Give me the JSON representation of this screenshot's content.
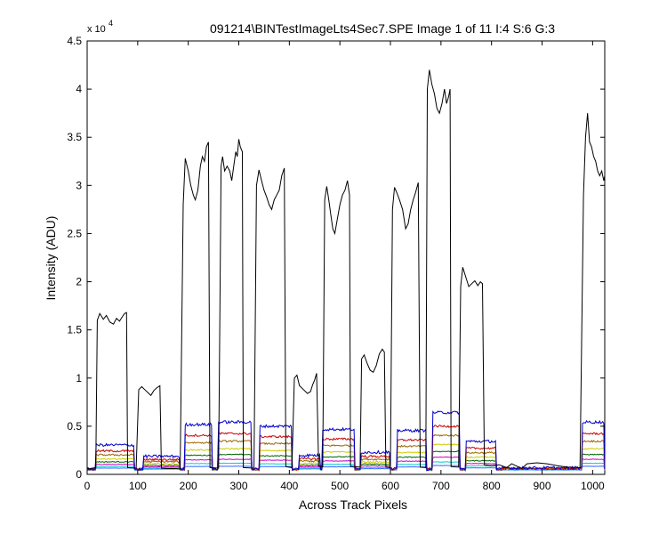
{
  "figure": {
    "title": "091214\\BINTestImageLts4Sec7.SPE  Image 1 of 11  I:4  S:6  G:3",
    "background": "#ffffff"
  },
  "chart_data": {
    "type": "line",
    "title": "091214\\BINTestImageLts4Sec7.SPE  Image 1 of 11  I:4  S:6  G:3",
    "xlabel": "Across Track Pixels",
    "ylabel": "Intensity (ADU)",
    "y_exponent_label": "x 10",
    "y_exponent_power": "4",
    "xlim": [
      0,
      1024
    ],
    "ylim": [
      0,
      45000
    ],
    "xticks": [
      0,
      100,
      200,
      300,
      400,
      500,
      600,
      700,
      800,
      900,
      1000
    ],
    "yticks": [
      0,
      5000,
      10000,
      15000,
      20000,
      25000,
      30000,
      35000,
      40000,
      45000
    ],
    "xtick_labels": [
      "0",
      "100",
      "200",
      "300",
      "400",
      "500",
      "600",
      "700",
      "800",
      "900",
      "1000"
    ],
    "ytick_labels": [
      "0",
      "0.5",
      "1",
      "1.5",
      "2",
      "2.5",
      "3",
      "3.5",
      "4",
      "4.5"
    ],
    "grid": false,
    "segments": [
      {
        "start": 0,
        "end": 18,
        "level": 0
      },
      {
        "start": 18,
        "end": 94,
        "level": 1.0
      },
      {
        "start": 94,
        "end": 111,
        "level": 0
      },
      {
        "start": 111,
        "end": 183,
        "level": 0.53
      },
      {
        "start": 183,
        "end": 193,
        "level": 0
      },
      {
        "start": 193,
        "end": 248,
        "level": 1.85
      },
      {
        "start": 248,
        "end": 260,
        "level": 0
      },
      {
        "start": 260,
        "end": 326,
        "level": 1.95
      },
      {
        "start": 326,
        "end": 341,
        "level": 0
      },
      {
        "start": 341,
        "end": 406,
        "level": 1.78
      },
      {
        "start": 406,
        "end": 420,
        "level": 0
      },
      {
        "start": 420,
        "end": 462,
        "level": 0.57
      },
      {
        "start": 462,
        "end": 466,
        "level": 0
      },
      {
        "start": 466,
        "end": 530,
        "level": 1.65
      },
      {
        "start": 530,
        "end": 542,
        "level": 0
      },
      {
        "start": 542,
        "end": 600,
        "level": 0.7
      },
      {
        "start": 600,
        "end": 613,
        "level": 0
      },
      {
        "start": 613,
        "end": 672,
        "level": 1.6
      },
      {
        "start": 672,
        "end": 684,
        "level": 0
      },
      {
        "start": 684,
        "end": 738,
        "level": 2.35
      },
      {
        "start": 738,
        "end": 750,
        "level": 0
      },
      {
        "start": 750,
        "end": 810,
        "level": 1.15
      },
      {
        "start": 810,
        "end": 822,
        "level": 0
      },
      {
        "start": 822,
        "end": 980,
        "level": 0.05
      },
      {
        "start": 980,
        "end": 1024,
        "level": 1.95
      }
    ],
    "series": [
      {
        "color": "#000000",
        "baseline": 600,
        "points": [
          [
            0,
            550
          ],
          [
            17,
            700
          ],
          [
            20,
            16000
          ],
          [
            25,
            16700
          ],
          [
            32,
            16100
          ],
          [
            38,
            16500
          ],
          [
            45,
            15800
          ],
          [
            52,
            15600
          ],
          [
            58,
            16200
          ],
          [
            64,
            15900
          ],
          [
            70,
            16400
          ],
          [
            74,
            16700
          ],
          [
            78,
            16800
          ],
          [
            80,
            700
          ],
          [
            97,
            650
          ],
          [
            102,
            8800
          ],
          [
            108,
            9100
          ],
          [
            114,
            8800
          ],
          [
            120,
            8500
          ],
          [
            126,
            8200
          ],
          [
            132,
            8700
          ],
          [
            138,
            9000
          ],
          [
            144,
            9200
          ],
          [
            147,
            650
          ],
          [
            160,
            600
          ],
          [
            175,
            600
          ],
          [
            184,
            550
          ],
          [
            190,
            28000
          ],
          [
            194,
            32800
          ],
          [
            200,
            31500
          ],
          [
            205,
            30000
          ],
          [
            210,
            29000
          ],
          [
            214,
            28500
          ],
          [
            219,
            29500
          ],
          [
            224,
            32000
          ],
          [
            228,
            33000
          ],
          [
            232,
            32500
          ],
          [
            236,
            34000
          ],
          [
            240,
            34500
          ],
          [
            243,
            700
          ],
          [
            260,
            650
          ],
          [
            265,
            32000
          ],
          [
            268,
            33000
          ],
          [
            272,
            31500
          ],
          [
            277,
            32000
          ],
          [
            282,
            31500
          ],
          [
            286,
            30500
          ],
          [
            290,
            32000
          ],
          [
            294,
            33500
          ],
          [
            297,
            33000
          ],
          [
            300,
            34800
          ],
          [
            303,
            34000
          ],
          [
            307,
            33500
          ],
          [
            309,
            700
          ],
          [
            330,
            650
          ],
          [
            335,
            30000
          ],
          [
            340,
            31600
          ],
          [
            345,
            30500
          ],
          [
            350,
            29500
          ],
          [
            355,
            28800
          ],
          [
            360,
            28000
          ],
          [
            365,
            27500
          ],
          [
            370,
            28500
          ],
          [
            375,
            29000
          ],
          [
            380,
            29500
          ],
          [
            385,
            31000
          ],
          [
            390,
            31800
          ],
          [
            393,
            800
          ],
          [
            405,
            700
          ],
          [
            410,
            10000
          ],
          [
            415,
            10300
          ],
          [
            420,
            9200
          ],
          [
            428,
            8800
          ],
          [
            436,
            8400
          ],
          [
            442,
            8600
          ],
          [
            446,
            9300
          ],
          [
            450,
            9800
          ],
          [
            454,
            10500
          ],
          [
            458,
            850
          ],
          [
            466,
            800
          ],
          [
            470,
            28500
          ],
          [
            474,
            29900
          ],
          [
            478,
            28500
          ],
          [
            482,
            27000
          ],
          [
            486,
            25500
          ],
          [
            490,
            25000
          ],
          [
            495,
            26500
          ],
          [
            500,
            28000
          ],
          [
            505,
            29000
          ],
          [
            510,
            29500
          ],
          [
            515,
            30500
          ],
          [
            519,
            29000
          ],
          [
            521,
            850
          ],
          [
            540,
            750
          ],
          [
            543,
            12000
          ],
          [
            548,
            12400
          ],
          [
            554,
            11500
          ],
          [
            560,
            10800
          ],
          [
            566,
            10600
          ],
          [
            572,
            11300
          ],
          [
            578,
            12500
          ],
          [
            584,
            13000
          ],
          [
            588,
            12700
          ],
          [
            591,
            750
          ],
          [
            600,
            700
          ],
          [
            604,
            27500
          ],
          [
            608,
            29800
          ],
          [
            613,
            29200
          ],
          [
            618,
            28500
          ],
          [
            624,
            27500
          ],
          [
            630,
            25500
          ],
          [
            635,
            26000
          ],
          [
            640,
            27500
          ],
          [
            645,
            28500
          ],
          [
            650,
            29300
          ],
          [
            655,
            30300
          ],
          [
            659,
            750
          ],
          [
            670,
            700
          ],
          [
            673,
            40000
          ],
          [
            677,
            42000
          ],
          [
            682,
            40500
          ],
          [
            687,
            39500
          ],
          [
            692,
            38000
          ],
          [
            697,
            37500
          ],
          [
            702,
            38500
          ],
          [
            707,
            40000
          ],
          [
            711,
            38500
          ],
          [
            715,
            39200
          ],
          [
            718,
            40000
          ],
          [
            720,
            800
          ],
          [
            735,
            750
          ],
          [
            739,
            19500
          ],
          [
            743,
            21500
          ],
          [
            749,
            20500
          ],
          [
            755,
            19500
          ],
          [
            761,
            19800
          ],
          [
            767,
            20100
          ],
          [
            773,
            19600
          ],
          [
            778,
            20000
          ],
          [
            782,
            19800
          ],
          [
            786,
            1000
          ],
          [
            800,
            900
          ],
          [
            815,
            1000
          ],
          [
            830,
            700
          ],
          [
            840,
            1100
          ],
          [
            860,
            600
          ],
          [
            870,
            1100
          ],
          [
            890,
            1200
          ],
          [
            910,
            1100
          ],
          [
            930,
            900
          ],
          [
            950,
            750
          ],
          [
            975,
            700
          ],
          [
            982,
            29000
          ],
          [
            986,
            35000
          ],
          [
            990,
            37500
          ],
          [
            994,
            34500
          ],
          [
            998,
            34000
          ],
          [
            1002,
            33000
          ],
          [
            1006,
            32500
          ],
          [
            1010,
            31500
          ],
          [
            1014,
            31000
          ],
          [
            1018,
            31500
          ],
          [
            1022,
            30500
          ],
          [
            1024,
            31000
          ]
        ]
      },
      {
        "color": "#0000cc",
        "scale": 2500,
        "baseline": 550
      },
      {
        "color": "#cc0000",
        "scale": 1900,
        "baseline": 530
      },
      {
        "color": "#996600",
        "scale": 1500,
        "baseline": 520
      },
      {
        "color": "#cccc00",
        "scale": 1100,
        "baseline": 510
      },
      {
        "color": "#006600",
        "scale": 800,
        "baseline": 500
      },
      {
        "color": "#cc00cc",
        "scale": 550,
        "baseline": 490
      },
      {
        "color": "#00cccc",
        "scale": 350,
        "baseline": 470
      },
      {
        "color": "#3366ff",
        "scale": 200,
        "baseline": 450
      }
    ]
  }
}
